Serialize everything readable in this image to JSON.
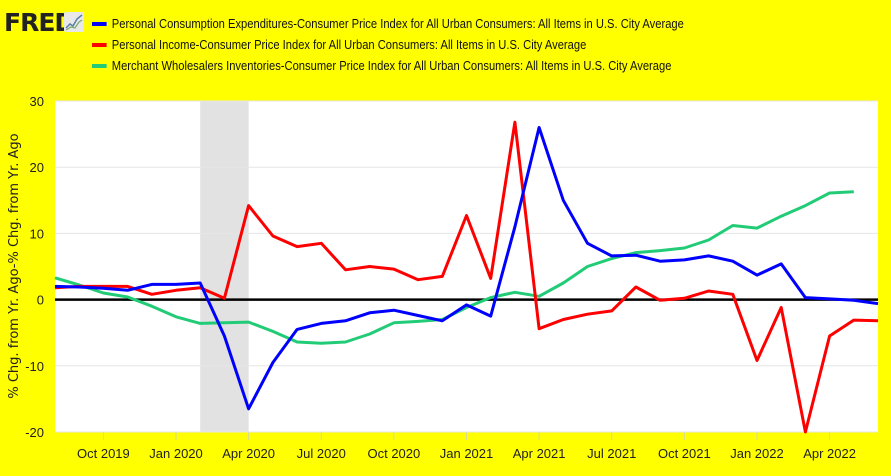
{
  "brand": {
    "logo_text": "FRED",
    "logo_icon": "chart-line-icon"
  },
  "chart_data": {
    "type": "line",
    "title": "",
    "xlabel": "",
    "ylabel": "% Chg. from Yr. Ago-% Chg. from Yr. Ago",
    "ylim": [
      -20,
      30
    ],
    "yticks": [
      30,
      20,
      10,
      0,
      -10,
      -20
    ],
    "x_start": "2019-08",
    "x_end": "2022-06",
    "xticks": [
      {
        "label": "Oct 2019",
        "month": "2019-10"
      },
      {
        "label": "Jan 2020",
        "month": "2020-01"
      },
      {
        "label": "Apr 2020",
        "month": "2020-04"
      },
      {
        "label": "Jul 2020",
        "month": "2020-07"
      },
      {
        "label": "Oct 2020",
        "month": "2020-10"
      },
      {
        "label": "Jan 2021",
        "month": "2021-01"
      },
      {
        "label": "Apr 2021",
        "month": "2021-04"
      },
      {
        "label": "Jul 2021",
        "month": "2021-07"
      },
      {
        "label": "Oct 2021",
        "month": "2021-10"
      },
      {
        "label": "Jan 2022",
        "month": "2022-01"
      },
      {
        "label": "Apr 2022",
        "month": "2022-04"
      }
    ],
    "grid": true,
    "zero_line": true,
    "recession_shading": {
      "start": "2020-02",
      "end": "2020-04"
    },
    "legend_placement": "top",
    "series": [
      {
        "name": "Personal Consumption Expenditures-Consumer Price Index for All Urban Consumers: All Items in U.S. City Average",
        "color": "#0000ff",
        "start": "2019-08",
        "values": [
          2.0,
          1.9,
          1.7,
          1.4,
          2.3,
          2.3,
          2.5,
          -5.5,
          -16.5,
          -9.5,
          -4.5,
          -3.6,
          -3.2,
          -2.0,
          -1.6,
          -2.4,
          -3.2,
          -0.8,
          -2.5,
          11.0,
          26.0,
          15.0,
          8.5,
          6.6,
          6.7,
          5.8,
          6.0,
          6.6,
          5.8,
          3.7,
          5.4,
          0.3,
          0.1,
          -0.1,
          -0.6
        ]
      },
      {
        "name": "Personal Income-Consumer Price Index for All Urban Consumers: All Items in U.S. City Average",
        "color": "#ff0000",
        "start": "2019-08",
        "values": [
          1.8,
          2.0,
          2.0,
          2.0,
          0.8,
          1.4,
          1.8,
          0.2,
          14.2,
          9.6,
          8.0,
          8.5,
          4.5,
          5.0,
          4.6,
          3.0,
          3.5,
          12.7,
          3.2,
          26.8,
          -4.4,
          -3.0,
          -2.2,
          -1.7,
          1.9,
          -0.1,
          0.2,
          1.3,
          0.8,
          -9.2,
          -1.2,
          -20.0,
          -5.5,
          -3.1,
          -3.2
        ]
      },
      {
        "name": "Merchant Wholesalers Inventories-Consumer Price Index for All Urban Consumers: All Items in U.S. City Average",
        "color": "#22cc77",
        "start": "2019-08",
        "values": [
          3.3,
          2.2,
          1.0,
          0.4,
          -1.0,
          -2.6,
          -3.6,
          -3.5,
          -3.4,
          -4.8,
          -6.4,
          -6.6,
          -6.4,
          -5.2,
          -3.5,
          -3.3,
          -3.0,
          -1.2,
          0.3,
          1.1,
          0.5,
          2.5,
          5.0,
          6.2,
          7.1,
          7.4,
          7.8,
          9.0,
          11.2,
          10.8,
          12.6,
          14.2,
          16.1,
          16.3
        ]
      }
    ]
  }
}
